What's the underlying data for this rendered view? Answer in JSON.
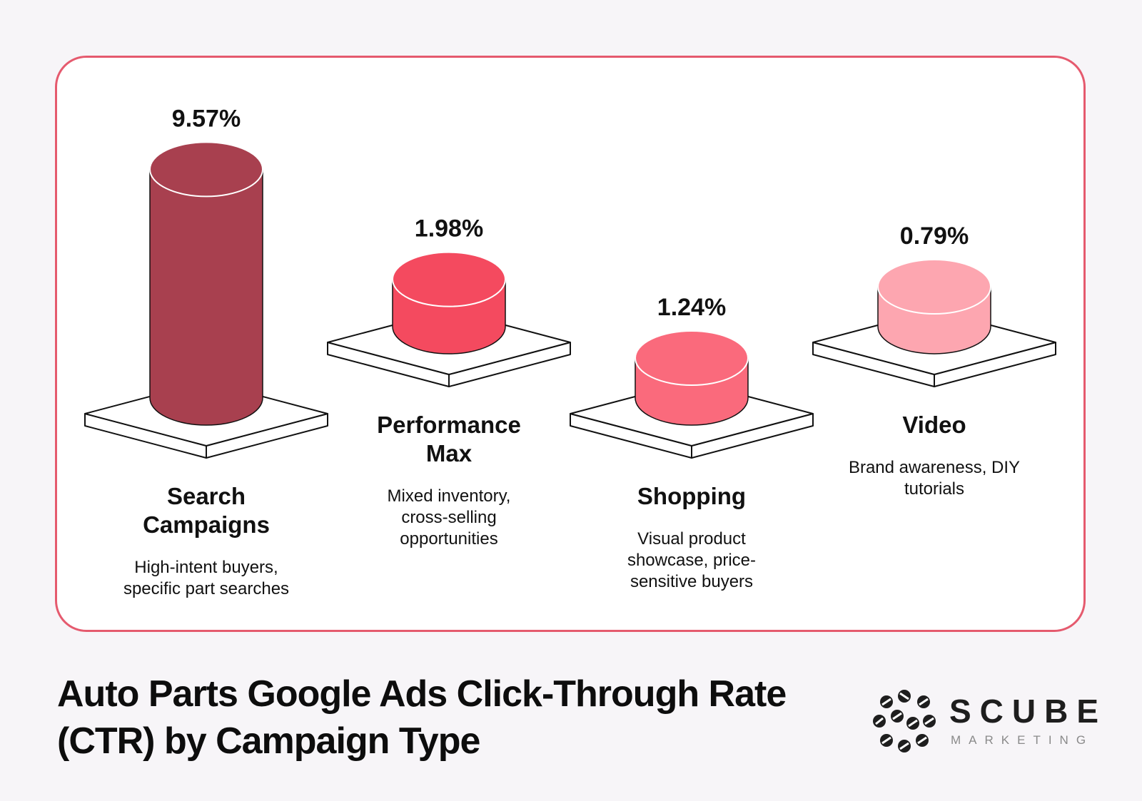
{
  "chart_data": {
    "type": "bar",
    "title": "Auto Parts Google Ads Click-Through Rate (CTR) by Campaign Type",
    "title_lines": [
      "Auto Parts Google Ads Click-Through Rate",
      "(CTR) by Campaign Type"
    ],
    "categories": [
      "Search Campaigns",
      "Performance Max",
      "Shopping",
      "Video"
    ],
    "values": [
      9.57,
      1.98,
      1.24,
      0.79
    ],
    "value_labels": [
      "9.57%",
      "1.98%",
      "1.24%",
      "0.79%"
    ],
    "bars": [
      {
        "name_lines": [
          "Search",
          "Campaigns"
        ],
        "desc_lines": [
          "High-intent buyers,",
          "specific part searches"
        ],
        "color": "#a8404f"
      },
      {
        "name_lines": [
          "Performance",
          "Max"
        ],
        "desc_lines": [
          "Mixed inventory,",
          "cross-selling",
          "opportunities"
        ],
        "color": "#f44a5f"
      },
      {
        "name_lines": [
          "Shopping"
        ],
        "desc_lines": [
          "Visual product",
          "showcase, price-",
          "sensitive buyers"
        ],
        "color": "#fa6a7c"
      },
      {
        "name_lines": [
          "Video"
        ],
        "desc_lines": [
          "Brand awareness, DIY",
          "tutorials"
        ],
        "color": "#fda6b0"
      }
    ],
    "grid": false,
    "legend": "none"
  },
  "brand": {
    "name": "SCUBE",
    "tagline": "MARKETING",
    "accent_color": "#e55a6e",
    "icon": "scube-logo-mark"
  }
}
